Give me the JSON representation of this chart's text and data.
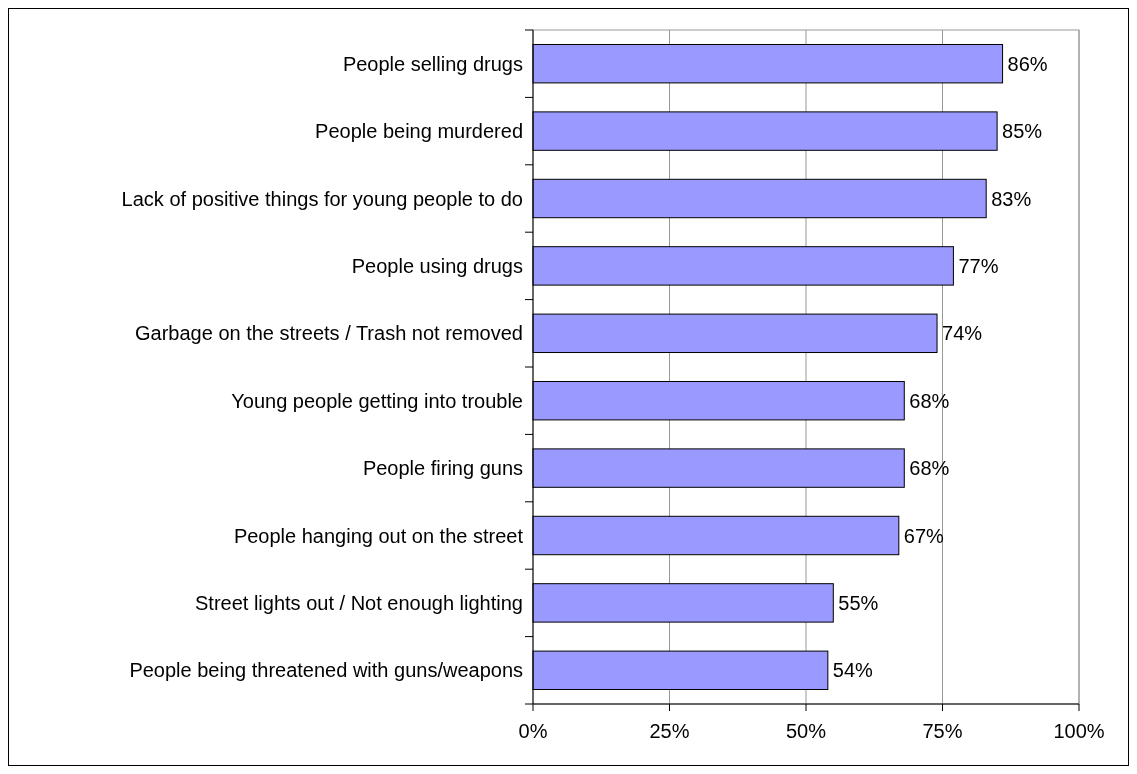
{
  "chart_data": {
    "type": "bar",
    "orientation": "horizontal",
    "categories": [
      "People selling drugs",
      "People being murdered",
      "Lack of positive things for young people to do",
      "People using drugs",
      "Garbage on the streets / Trash not removed",
      "Young people getting into trouble",
      "People firing guns",
      "People hanging out on the street",
      "Street lights out / Not enough lighting",
      "People being threatened with guns/weapons"
    ],
    "values": [
      86,
      85,
      83,
      77,
      74,
      68,
      68,
      67,
      55,
      54
    ],
    "value_labels": [
      "86%",
      "85%",
      "83%",
      "77%",
      "74%",
      "68%",
      "68%",
      "67%",
      "55%",
      "54%"
    ],
    "color": "#9999ff",
    "xlim": [
      0,
      100
    ],
    "xticks": [
      {
        "value": 0,
        "label": "0%"
      },
      {
        "value": 25,
        "label": "25%"
      },
      {
        "value": 50,
        "label": "50%"
      },
      {
        "value": 75,
        "label": "75%"
      },
      {
        "value": 100,
        "label": "100%"
      }
    ],
    "grid": "x"
  }
}
